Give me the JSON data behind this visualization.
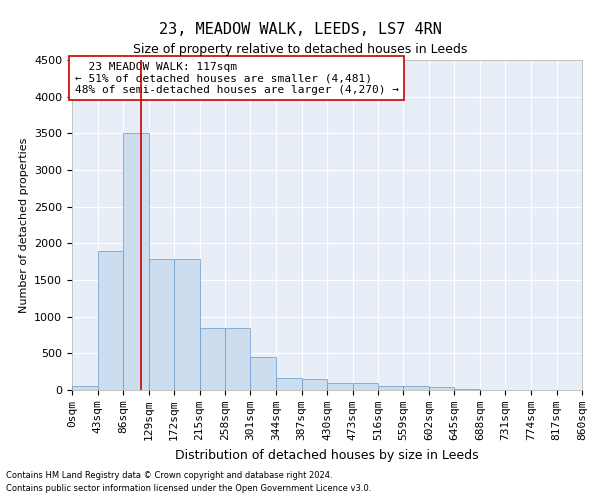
{
  "title": "23, MEADOW WALK, LEEDS, LS7 4RN",
  "subtitle": "Size of property relative to detached houses in Leeds",
  "xlabel": "Distribution of detached houses by size in Leeds",
  "ylabel": "Number of detached properties",
  "footnote1": "Contains HM Land Registry data © Crown copyright and database right 2024.",
  "footnote2": "Contains public sector information licensed under the Open Government Licence v3.0.",
  "annotation_line1": "  23 MEADOW WALK: 117sqm",
  "annotation_line2": "← 51% of detached houses are smaller (4,481)",
  "annotation_line3": "48% of semi-detached houses are larger (4,270) →",
  "bar_edges": [
    0,
    43,
    86,
    129,
    172,
    215,
    258,
    301,
    344,
    387,
    430,
    473,
    516,
    559,
    602,
    645,
    688,
    731,
    774,
    817,
    860
  ],
  "bar_values": [
    50,
    1900,
    3500,
    1780,
    1780,
    840,
    840,
    450,
    160,
    155,
    95,
    90,
    60,
    55,
    45,
    20,
    0,
    0,
    0,
    0
  ],
  "property_size": 117,
  "bar_color": "#ccddf0",
  "bar_edge_color": "#6699cc",
  "line_color": "#cc0000",
  "background_color": "#e8eef8",
  "grid_color": "#ffffff",
  "ylim": [
    0,
    4500
  ],
  "yticks": [
    0,
    500,
    1000,
    1500,
    2000,
    2500,
    3000,
    3500,
    4000,
    4500
  ],
  "title_fontsize": 11,
  "subtitle_fontsize": 9,
  "xlabel_fontsize": 9,
  "ylabel_fontsize": 8,
  "tick_fontsize": 8,
  "annot_fontsize": 8
}
